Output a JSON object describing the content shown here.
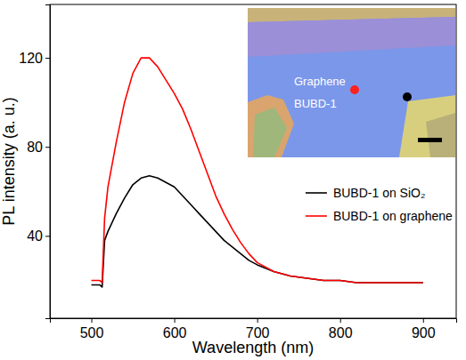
{
  "chart_data": {
    "type": "line",
    "x_label": "Wavelength (nm)",
    "y_label": "PL intensity (a. u.)",
    "x": [
      500,
      505,
      510,
      513,
      516,
      520,
      530,
      540,
      550,
      560,
      570,
      580,
      590,
      600,
      610,
      620,
      630,
      640,
      650,
      660,
      670,
      680,
      690,
      700,
      720,
      740,
      760,
      780,
      800,
      820,
      840,
      860,
      880,
      900
    ],
    "series": [
      {
        "name": "BUBD-1 on SiO₂",
        "color": "#000000",
        "values": [
          18,
          18,
          18,
          17,
          38,
          42,
          50,
          57,
          63,
          66,
          67,
          66,
          64,
          62,
          58,
          54,
          50,
          46,
          42,
          38,
          35,
          32,
          29,
          27,
          24,
          22,
          21,
          20,
          20,
          19,
          19,
          19,
          19,
          19
        ]
      },
      {
        "name": "BUBD-1 on graphene",
        "color": "#ff0000",
        "values": [
          20,
          20,
          20,
          19,
          48,
          62,
          82,
          100,
          113,
          120,
          120,
          116,
          110,
          104,
          97,
          88,
          78,
          68,
          58,
          50,
          43,
          37,
          32,
          28,
          24,
          22,
          21,
          20,
          20,
          19,
          19,
          19,
          19,
          19
        ]
      }
    ],
    "xlim": [
      450,
      940
    ],
    "xticks": [
      500,
      600,
      700,
      800,
      900
    ],
    "ylim": [
      3,
      144
    ],
    "yticks": [
      40,
      80,
      120
    ],
    "legend": "right",
    "annotations": [
      "Graphene",
      "BUBD-1"
    ]
  }
}
